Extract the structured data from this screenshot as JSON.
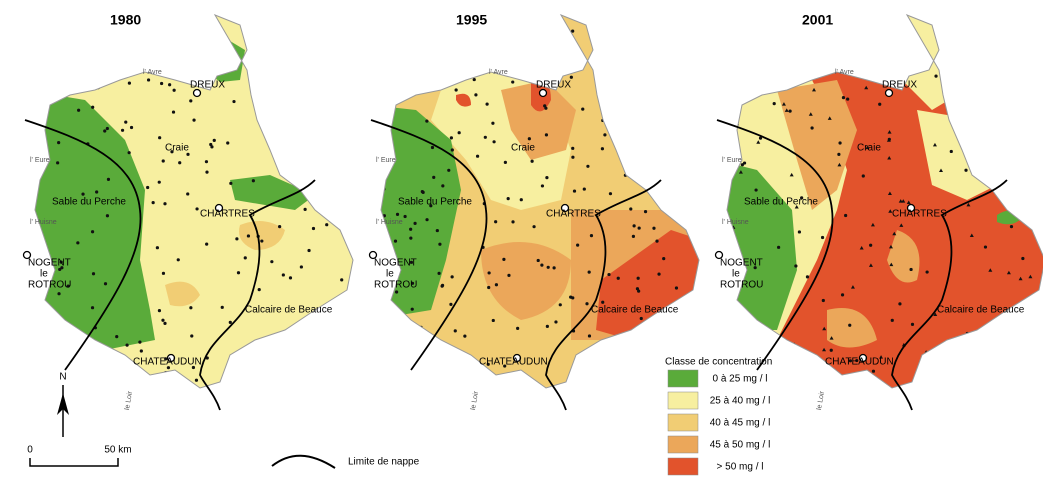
{
  "maps": [
    {
      "title": "1980",
      "places": [
        "l' Avre",
        "DREUX",
        "Craie",
        "l' Eure",
        "Sable du Perche",
        "l' Huisne",
        "CHARTRES",
        "NOGENT",
        "le",
        "ROTROU",
        "Calcaire de Beauce",
        "CHATEAUDUN",
        "le Loir"
      ]
    },
    {
      "title": "1995",
      "places": [
        "l' Avre",
        "DREUX",
        "Craie",
        "l' Eure",
        "Sable du Perche",
        "l' Huisne",
        "CHARTRES",
        "NOGENT",
        "le",
        "ROTROU",
        "Calcaire de Beauce",
        "CHATEAUDUN",
        "le Loir"
      ]
    },
    {
      "title": "2001",
      "places": [
        "l' Avre",
        "DREUX",
        "Craie",
        "l' Eure",
        "Sable du Perche",
        "l' Huisne",
        "CHARTRES",
        "NOGENT",
        "le",
        "ROTROU",
        "Calcaire de Beauce",
        "CHATEAUDUN",
        "le Loir"
      ]
    }
  ],
  "legend": {
    "title": "Classe de concentration",
    "classes": [
      {
        "label": "0  à  25 mg / l",
        "color": "#5aab3a"
      },
      {
        "label": "25  à  40 mg / l",
        "color": "#f7efa0"
      },
      {
        "label": "40  à  45 mg / l",
        "color": "#f1cd74"
      },
      {
        "label": "45  à  50 mg / l",
        "color": "#eba75a"
      },
      {
        "label": "> 50 mg / l",
        "color": "#e2532c"
      }
    ]
  },
  "north": "N",
  "scale": {
    "start": "0",
    "end": "50 km"
  },
  "limit_label": "Limite de nappe"
}
